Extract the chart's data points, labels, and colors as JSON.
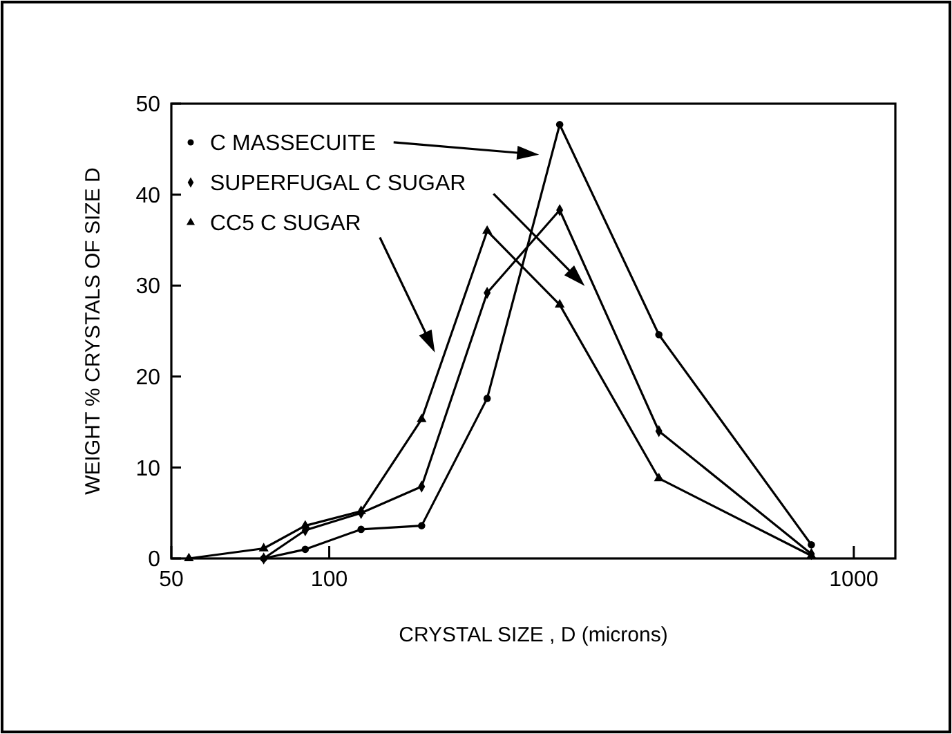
{
  "chart_data": {
    "type": "line",
    "xlabel": "CRYSTAL SIZE , D  (microns)",
    "ylabel": "WEIGHT % CRYSTALS OF SIZE D",
    "log": "x",
    "xlim": [
      50,
      1200
    ],
    "xticks": [
      50,
      100,
      1000
    ],
    "ylim": [
      0,
      50
    ],
    "yticks": [
      0,
      10,
      20,
      30,
      40,
      50
    ],
    "grid": false,
    "legend": "top left",
    "line_style": "solid",
    "series": [
      {
        "name": "C MASSECUITE",
        "color": "#000000",
        "marker": "circle",
        "x": [
          75,
          90,
          115,
          150,
          200,
          275,
          425,
          830
        ],
        "values": [
          0,
          1.0,
          3.2,
          3.6,
          17.6,
          47.7,
          24.6,
          1.5
        ]
      },
      {
        "name": "SUPERFUGAL C SUGAR",
        "color": "#000000",
        "marker": "diamond",
        "x": [
          75,
          90,
          115,
          150,
          200,
          275,
          425,
          830
        ],
        "values": [
          0,
          3.1,
          5.0,
          7.9,
          29.2,
          38.3,
          14.0,
          0.5
        ]
      },
      {
        "name": "CC5 C SUGAR",
        "color": "#000000",
        "marker": "triangle",
        "x": [
          54,
          75,
          90,
          115,
          150,
          200,
          275,
          425,
          830
        ],
        "values": [
          0,
          1.1,
          3.6,
          5.2,
          15.3,
          36.0,
          27.9,
          8.8,
          0.3
        ]
      }
    ]
  }
}
